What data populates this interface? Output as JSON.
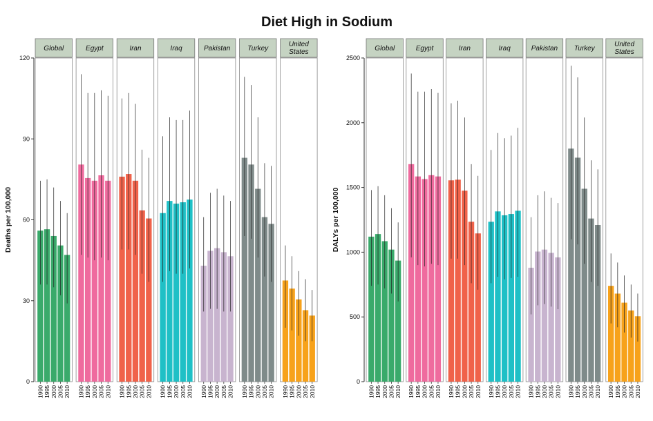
{
  "chart_data": {
    "title": "Diet High in Sodium",
    "type": "bar",
    "years": [
      "1990",
      "1995",
      "2000",
      "2005",
      "2010"
    ],
    "countries": [
      {
        "name": "Global",
        "color": "#3aaa6b"
      },
      {
        "name": "Egypt",
        "color": "#ef6b9e"
      },
      {
        "name": "Iran",
        "color": "#f0624a"
      },
      {
        "name": "Iraq",
        "color": "#1fc0c6"
      },
      {
        "name": "Pakistan",
        "color": "#c8b4cf"
      },
      {
        "name": "Turkey",
        "color": "#7f8b8a"
      },
      {
        "name": "United States",
        "color": "#f7a21b"
      }
    ],
    "strip_fill": "#c5d3c2",
    "panels": [
      {
        "ylabel": "Deaths per 100,000",
        "ylim": [
          0,
          120
        ],
        "yticks": [
          0,
          30,
          60,
          90,
          120
        ],
        "values": [
          [
            56,
            56.5,
            54,
            50.5,
            47
          ],
          [
            80.5,
            75.5,
            74.5,
            76.5,
            74.5
          ],
          [
            76,
            77,
            74.5,
            63.5,
            60.5
          ],
          [
            62.5,
            67,
            66,
            66.5,
            67.5
          ],
          [
            43,
            48.5,
            49.5,
            48,
            46.5
          ],
          [
            83,
            80.5,
            71.5,
            61,
            58.5
          ],
          [
            37.5,
            34.5,
            30.5,
            26.5,
            24.5
          ]
        ],
        "upper": [
          [
            74.5,
            75,
            72,
            67,
            62.5
          ],
          [
            114,
            107,
            107,
            108,
            106
          ],
          [
            105,
            107,
            103,
            86,
            83
          ],
          [
            91,
            98,
            97,
            97,
            100.5
          ],
          [
            61,
            70,
            71.5,
            69,
            67
          ],
          [
            113,
            110,
            98,
            81,
            80
          ],
          [
            50.5,
            46.5,
            41,
            38,
            34
          ]
        ],
        "lower": [
          [
            36,
            36,
            35,
            32,
            29
          ],
          [
            47,
            46,
            45,
            46,
            45
          ],
          [
            49,
            49,
            47,
            40,
            37
          ],
          [
            37,
            41,
            40,
            40,
            42
          ],
          [
            26,
            27,
            27,
            26,
            26
          ],
          [
            54,
            53,
            46,
            39,
            37
          ],
          [
            20,
            19,
            17,
            15,
            15
          ]
        ]
      },
      {
        "ylabel": "DALYs per 100,000",
        "ylim": [
          0,
          2500
        ],
        "yticks": [
          0,
          500,
          1000,
          1500,
          2000,
          2500
        ],
        "values": [
          [
            1120,
            1140,
            1085,
            1020,
            935
          ],
          [
            1680,
            1585,
            1565,
            1595,
            1585
          ],
          [
            1555,
            1560,
            1475,
            1235,
            1145
          ],
          [
            1235,
            1315,
            1285,
            1295,
            1320
          ],
          [
            880,
            1005,
            1020,
            995,
            960
          ],
          [
            1800,
            1730,
            1490,
            1260,
            1210
          ],
          [
            740,
            680,
            610,
            550,
            505
          ]
        ],
        "upper": [
          [
            1480,
            1510,
            1440,
            1340,
            1230
          ],
          [
            2380,
            2240,
            2240,
            2260,
            2230
          ],
          [
            2150,
            2170,
            2040,
            1680,
            1590
          ],
          [
            1790,
            1920,
            1880,
            1900,
            1960
          ],
          [
            1270,
            1440,
            1470,
            1420,
            1380
          ],
          [
            2440,
            2350,
            2040,
            1710,
            1640
          ],
          [
            990,
            920,
            820,
            750,
            680
          ]
        ],
        "lower": [
          [
            740,
            750,
            720,
            680,
            620
          ],
          [
            960,
            900,
            890,
            910,
            900
          ],
          [
            950,
            950,
            900,
            760,
            710
          ],
          [
            760,
            810,
            790,
            800,
            810
          ],
          [
            520,
            590,
            600,
            580,
            560
          ],
          [
            1100,
            1060,
            910,
            770,
            740
          ],
          [
            450,
            420,
            380,
            340,
            310
          ]
        ]
      }
    ]
  }
}
